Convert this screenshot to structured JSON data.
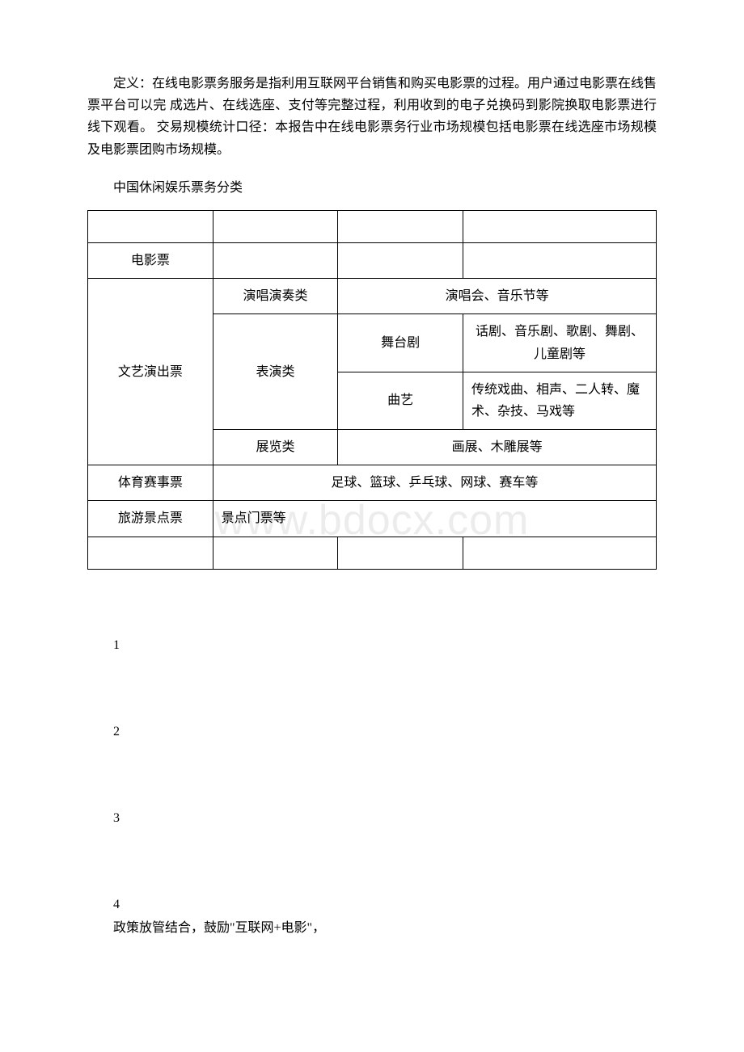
{
  "paragraph": "定义：在线电影票务服务是指利用互联网平台销售和购买电影票的过程。用户通过电影票在线售票平台可以完 成选片、在线选座、支付等完整过程，利用收到的电子兑换码到影院换取电影票进行线下观看。 交易规模统计口径：本报告中在线电影票务行业市场规模包括电影票在线选座市场规模及电影票团购市场规模。",
  "subtitle": "中国休闲娱乐票务分类",
  "table": {
    "row1_col1": "电影票",
    "row2_col1": "文艺演出票",
    "row2_col2": "演唱演奏类",
    "row2_col3": "演唱会、音乐节等",
    "row3_col2": "表演类",
    "row3_col3": "舞台剧",
    "row3_col4": "话剧、音乐剧、歌剧、舞剧、儿童剧等",
    "row4_col3": "曲艺",
    "row4_col4": "传统戏曲、相声、二人转、魔术、杂技、马戏等",
    "row5_col2": "展览类",
    "row5_col3": "画展、木雕展等",
    "row6_col1": "体育赛事票",
    "row6_col2": "足球、篮球、乒乓球、网球、赛车等",
    "row7_col1": "旅游景点票",
    "row7_col2": "景点门票等"
  },
  "list": {
    "item1": "1",
    "item2": "2",
    "item3": "3",
    "item4": "4"
  },
  "policy": "政策放管结合，鼓励\"互联网+电影\"，",
  "watermark": "www.bdocx.com"
}
